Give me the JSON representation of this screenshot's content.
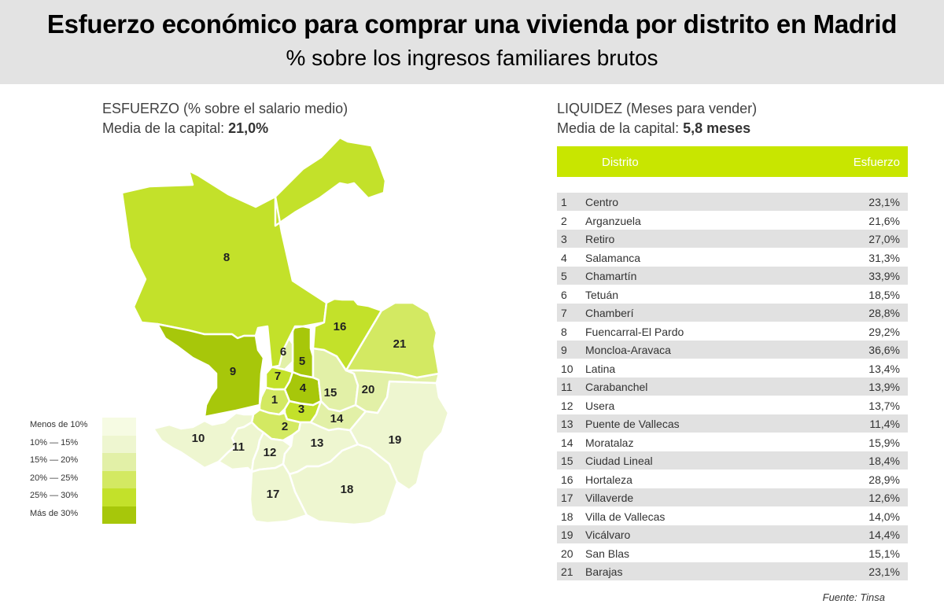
{
  "header": {
    "title": "Esfuerzo económico para comprar una vivienda por distrito en Madrid",
    "subtitle": "% sobre los ingresos familiares brutos"
  },
  "map_panel": {
    "heading": "ESFUERZO (% sobre el salario medio)",
    "average_label": "Media de la capital: ",
    "average_value": "21,0%"
  },
  "table_panel": {
    "heading": "LIQUIDEZ (Meses para vender)",
    "average_label": "Media de la capital: ",
    "average_value": "5,8 meses",
    "col_district": "Distrito",
    "col_effort": "Esfuerzo"
  },
  "legend": [
    {
      "label": "Menos de 10%",
      "color": "#f6fbe3"
    },
    {
      "label": "10%   —   15%",
      "color": "#eef6d0"
    },
    {
      "label": "15%   —   20%",
      "color": "#e2f0a7"
    },
    {
      "label": "20%   —   25%",
      "color": "#d3e962"
    },
    {
      "label": "25%   —   30%",
      "color": "#c3e12a"
    },
    {
      "label": "Más de 30%",
      "color": "#a7c70a"
    }
  ],
  "chart_data": {
    "type": "table",
    "title": "Esfuerzo económico para comprar una vivienda por distrito en Madrid",
    "subtitle": "% sobre los ingresos familiares brutos",
    "unit": "%",
    "districts": [
      {
        "num": "1",
        "name": "Centro",
        "effort": "23,1%",
        "value": 23.1
      },
      {
        "num": "2",
        "name": "Arganzuela",
        "effort": "21,6%",
        "value": 21.6
      },
      {
        "num": "3",
        "name": "Retiro",
        "effort": "27,0%",
        "value": 27.0
      },
      {
        "num": "4",
        "name": "Salamanca",
        "effort": "31,3%",
        "value": 31.3
      },
      {
        "num": "5",
        "name": "Chamartín",
        "effort": "33,9%",
        "value": 33.9
      },
      {
        "num": "6",
        "name": "Tetuán",
        "effort": "18,5%",
        "value": 18.5
      },
      {
        "num": "7",
        "name": "Chamberí",
        "effort": "28,8%",
        "value": 28.8
      },
      {
        "num": "8",
        "name": "Fuencarral-El Pardo",
        "effort": "29,2%",
        "value": 29.2
      },
      {
        "num": "9",
        "name": "Moncloa-Aravaca",
        "effort": "36,6%",
        "value": 36.6
      },
      {
        "num": "10",
        "name": "Latina",
        "effort": "13,4%",
        "value": 13.4
      },
      {
        "num": "11",
        "name": "Carabanchel",
        "effort": "13,9%",
        "value": 13.9
      },
      {
        "num": "12",
        "name": "Usera",
        "effort": "13,7%",
        "value": 13.7
      },
      {
        "num": "13",
        "name": "Puente de Vallecas",
        "effort": "11,4%",
        "value": 11.4
      },
      {
        "num": "14",
        "name": "Moratalaz",
        "effort": "15,9%",
        "value": 15.9
      },
      {
        "num": "15",
        "name": "Ciudad Lineal",
        "effort": "18,4%",
        "value": 18.4
      },
      {
        "num": "16",
        "name": "Hortaleza",
        "effort": "28,9%",
        "value": 28.9
      },
      {
        "num": "17",
        "name": "Villaverde",
        "effort": "12,6%",
        "value": 12.6
      },
      {
        "num": "18",
        "name": "Villa de Vallecas",
        "effort": "14,0%",
        "value": 14.0
      },
      {
        "num": "19",
        "name": "Vicálvaro",
        "effort": "14,4%",
        "value": 14.4
      },
      {
        "num": "20",
        "name": "San Blas",
        "effort": "15,1%",
        "value": 15.1
      },
      {
        "num": "21",
        "name": "Barajas",
        "effort": "23,1%",
        "value": 23.1
      }
    ]
  },
  "source": "Fuente: Tinsa"
}
